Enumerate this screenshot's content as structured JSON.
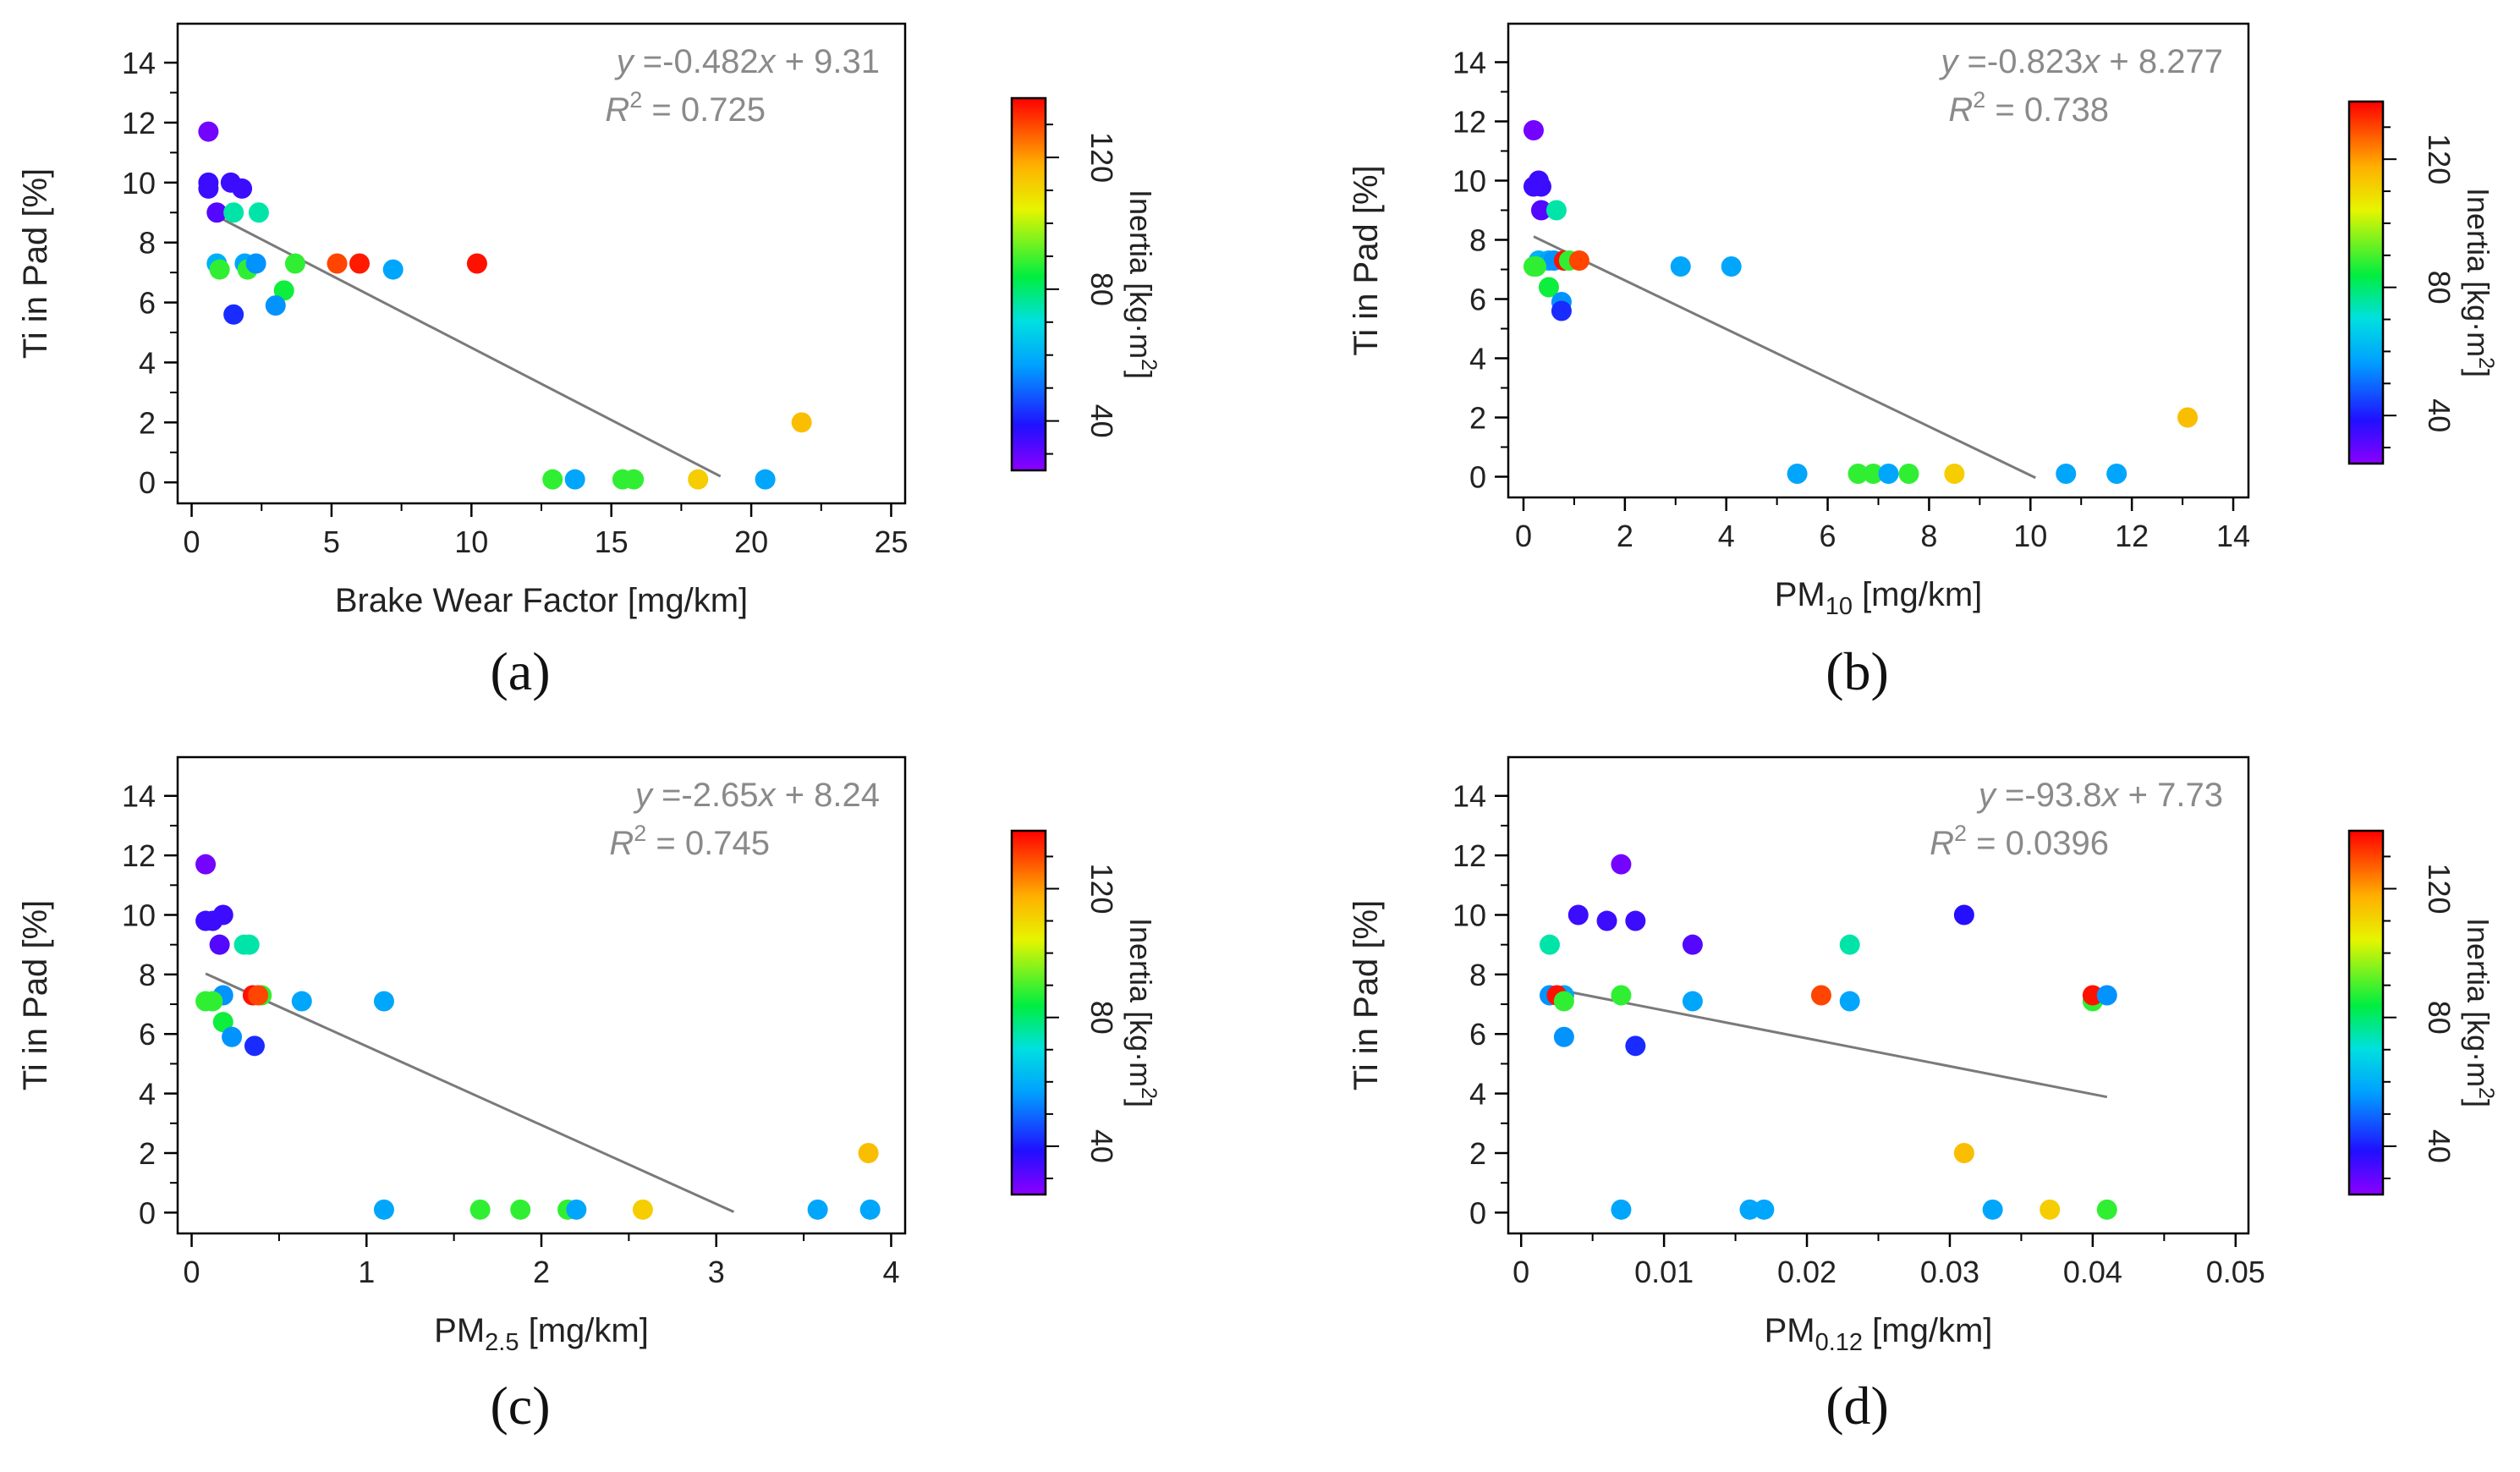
{
  "colorbar": {
    "label_main": "Inertia [kg·m",
    "label_sup": "2",
    "label_close": "]",
    "min": 25,
    "max": 138,
    "ticks": [
      40,
      80,
      120
    ]
  },
  "chart_data": [
    {
      "type": "scatter",
      "panel": "(a)",
      "panel_letter": "a",
      "xlabel_main": "Brake Wear Factor [mg/km]",
      "xlabel_sub": "",
      "xlabel_rest": "",
      "ylabel": "Ti in Pad [%]",
      "xlim": [
        -0.5,
        25.5
      ],
      "ylim": [
        -0.7,
        15.3
      ],
      "xticks": [
        0,
        5,
        10,
        15,
        20,
        25
      ],
      "xtick_labels": [
        "0",
        "5",
        "10",
        "15",
        "20",
        "25"
      ],
      "yticks": [
        0,
        2,
        4,
        6,
        8,
        10,
        12,
        14
      ],
      "fit": {
        "slope": -0.482,
        "intercept": 9.31,
        "x_range": [
          0.6,
          18.9
        ]
      },
      "equation": {
        "prefix": "y",
        "rhs": " =-0.482",
        "var": "x",
        "tail": " + 9.31",
        "r2_prefix": "R",
        "r2_sup": "2",
        "r2_value": " = 0.725"
      },
      "points": [
        {
          "x": 0.6,
          "y": 11.7,
          "inertia": 28
        },
        {
          "x": 0.6,
          "y": 10.0,
          "inertia": 35
        },
        {
          "x": 0.6,
          "y": 9.8,
          "inertia": 35
        },
        {
          "x": 1.4,
          "y": 10.0,
          "inertia": 35
        },
        {
          "x": 1.8,
          "y": 9.8,
          "inertia": 35
        },
        {
          "x": 0.9,
          "y": 9.0,
          "inertia": 32
        },
        {
          "x": 1.5,
          "y": 9.0,
          "inertia": 75
        },
        {
          "x": 2.4,
          "y": 9.0,
          "inertia": 75
        },
        {
          "x": 0.9,
          "y": 7.3,
          "inertia": 60
        },
        {
          "x": 1.0,
          "y": 7.1,
          "inertia": 88
        },
        {
          "x": 1.9,
          "y": 7.3,
          "inertia": 58
        },
        {
          "x": 2.0,
          "y": 7.1,
          "inertia": 88
        },
        {
          "x": 2.3,
          "y": 7.3,
          "inertia": 55
        },
        {
          "x": 3.7,
          "y": 7.3,
          "inertia": 88
        },
        {
          "x": 5.2,
          "y": 7.3,
          "inertia": 130
        },
        {
          "x": 6.0,
          "y": 7.3,
          "inertia": 135
        },
        {
          "x": 7.2,
          "y": 7.1,
          "inertia": 58
        },
        {
          "x": 10.2,
          "y": 7.3,
          "inertia": 136
        },
        {
          "x": 3.3,
          "y": 6.4,
          "inertia": 85
        },
        {
          "x": 3.0,
          "y": 5.9,
          "inertia": 55
        },
        {
          "x": 1.5,
          "y": 5.6,
          "inertia": 42
        },
        {
          "x": 12.9,
          "y": 0.1,
          "inertia": 88
        },
        {
          "x": 13.7,
          "y": 0.1,
          "inertia": 58
        },
        {
          "x": 15.4,
          "y": 0.1,
          "inertia": 88
        },
        {
          "x": 15.8,
          "y": 0.1,
          "inertia": 88
        },
        {
          "x": 18.1,
          "y": 0.1,
          "inertia": 112
        },
        {
          "x": 20.5,
          "y": 0.1,
          "inertia": 58
        },
        {
          "x": 21.8,
          "y": 2.0,
          "inertia": 115
        }
      ]
    },
    {
      "type": "scatter",
      "panel": "(b)",
      "panel_letter": "b",
      "xlabel_main": "PM",
      "xlabel_sub": "10",
      "xlabel_rest": " [mg/km]",
      "ylabel": "Ti in Pad [%]",
      "xlim": [
        -0.3,
        14.3
      ],
      "ylim": [
        -0.7,
        15.3
      ],
      "xticks": [
        0,
        2,
        4,
        6,
        8,
        10,
        12,
        14
      ],
      "xtick_labels": [
        "0",
        "2",
        "4",
        "6",
        "8",
        "10",
        "12",
        "14"
      ],
      "yticks": [
        0,
        2,
        4,
        6,
        8,
        10,
        12,
        14
      ],
      "fit": {
        "slope": -0.823,
        "intercept": 8.277,
        "x_range": [
          0.2,
          10.1
        ]
      },
      "equation": {
        "prefix": "y",
        "rhs": " =-0.823",
        "var": "x",
        "tail": " + 8.277",
        "r2_prefix": "R",
        "r2_sup": "2",
        "r2_value": " = 0.738"
      },
      "points": [
        {
          "x": 0.2,
          "y": 11.7,
          "inertia": 28
        },
        {
          "x": 0.2,
          "y": 9.8,
          "inertia": 35
        },
        {
          "x": 0.3,
          "y": 10.0,
          "inertia": 35
        },
        {
          "x": 0.35,
          "y": 9.8,
          "inertia": 35
        },
        {
          "x": 0.35,
          "y": 9.0,
          "inertia": 32
        },
        {
          "x": 0.65,
          "y": 9.0,
          "inertia": 75
        },
        {
          "x": 0.3,
          "y": 7.3,
          "inertia": 60
        },
        {
          "x": 0.5,
          "y": 7.3,
          "inertia": 58
        },
        {
          "x": 0.6,
          "y": 7.3,
          "inertia": 55
        },
        {
          "x": 0.8,
          "y": 7.3,
          "inertia": 136
        },
        {
          "x": 0.9,
          "y": 7.3,
          "inertia": 88
        },
        {
          "x": 1.1,
          "y": 7.3,
          "inertia": 130
        },
        {
          "x": 0.2,
          "y": 7.1,
          "inertia": 88
        },
        {
          "x": 0.25,
          "y": 7.1,
          "inertia": 88
        },
        {
          "x": 0.5,
          "y": 6.4,
          "inertia": 85
        },
        {
          "x": 0.75,
          "y": 5.9,
          "inertia": 55
        },
        {
          "x": 0.75,
          "y": 5.6,
          "inertia": 42
        },
        {
          "x": 3.1,
          "y": 7.1,
          "inertia": 58
        },
        {
          "x": 4.1,
          "y": 7.1,
          "inertia": 58
        },
        {
          "x": 5.4,
          "y": 0.1,
          "inertia": 58
        },
        {
          "x": 6.6,
          "y": 0.1,
          "inertia": 88
        },
        {
          "x": 6.9,
          "y": 0.1,
          "inertia": 88
        },
        {
          "x": 7.2,
          "y": 0.1,
          "inertia": 58
        },
        {
          "x": 7.6,
          "y": 0.1,
          "inertia": 88
        },
        {
          "x": 8.5,
          "y": 0.1,
          "inertia": 112
        },
        {
          "x": 10.7,
          "y": 0.1,
          "inertia": 58
        },
        {
          "x": 11.7,
          "y": 0.1,
          "inertia": 58
        },
        {
          "x": 13.1,
          "y": 2.0,
          "inertia": 115
        }
      ]
    },
    {
      "type": "scatter",
      "panel": "(c)",
      "panel_letter": "c",
      "xlabel_main": "PM",
      "xlabel_sub": "2.5",
      "xlabel_rest": " [mg/km]",
      "ylabel": "Ti in Pad [%]",
      "xlim": [
        -0.08,
        4.08
      ],
      "ylim": [
        -0.7,
        15.3
      ],
      "xticks": [
        0,
        1,
        2,
        3,
        4
      ],
      "xtick_labels": [
        "0",
        "1",
        "2",
        "3",
        "4"
      ],
      "yticks": [
        0,
        2,
        4,
        6,
        8,
        10,
        12,
        14
      ],
      "fit": {
        "slope": -2.65,
        "intercept": 8.24,
        "x_range": [
          0.08,
          3.1
        ]
      },
      "equation": {
        "prefix": "y",
        "rhs": " =-2.65",
        "var": "x",
        "tail": " + 8.24",
        "r2_prefix": "R",
        "r2_sup": "2",
        "r2_value": " = 0.745"
      },
      "points": [
        {
          "x": 0.08,
          "y": 11.7,
          "inertia": 28
        },
        {
          "x": 0.08,
          "y": 9.8,
          "inertia": 35
        },
        {
          "x": 0.12,
          "y": 9.8,
          "inertia": 35
        },
        {
          "x": 0.18,
          "y": 10.0,
          "inertia": 35
        },
        {
          "x": 0.16,
          "y": 9.0,
          "inertia": 32
        },
        {
          "x": 0.3,
          "y": 9.0,
          "inertia": 75
        },
        {
          "x": 0.33,
          "y": 9.0,
          "inertia": 75
        },
        {
          "x": 0.18,
          "y": 7.3,
          "inertia": 55
        },
        {
          "x": 0.35,
          "y": 7.3,
          "inertia": 136
        },
        {
          "x": 0.4,
          "y": 7.3,
          "inertia": 88
        },
        {
          "x": 0.38,
          "y": 7.3,
          "inertia": 130
        },
        {
          "x": 0.08,
          "y": 7.1,
          "inertia": 88
        },
        {
          "x": 0.12,
          "y": 7.1,
          "inertia": 88
        },
        {
          "x": 0.18,
          "y": 6.4,
          "inertia": 85
        },
        {
          "x": 0.23,
          "y": 5.9,
          "inertia": 55
        },
        {
          "x": 0.36,
          "y": 5.6,
          "inertia": 42
        },
        {
          "x": 0.63,
          "y": 7.1,
          "inertia": 58
        },
        {
          "x": 1.1,
          "y": 7.1,
          "inertia": 58
        },
        {
          "x": 1.1,
          "y": 0.1,
          "inertia": 58
        },
        {
          "x": 1.65,
          "y": 0.1,
          "inertia": 88
        },
        {
          "x": 1.88,
          "y": 0.1,
          "inertia": 88
        },
        {
          "x": 2.15,
          "y": 0.1,
          "inertia": 88
        },
        {
          "x": 2.2,
          "y": 0.1,
          "inertia": 58
        },
        {
          "x": 2.58,
          "y": 0.1,
          "inertia": 112
        },
        {
          "x": 3.58,
          "y": 0.1,
          "inertia": 58
        },
        {
          "x": 3.88,
          "y": 0.1,
          "inertia": 58
        },
        {
          "x": 3.87,
          "y": 2.0,
          "inertia": 115
        }
      ]
    },
    {
      "type": "scatter",
      "panel": "(d)",
      "panel_letter": "d",
      "xlabel_main": "PM",
      "xlabel_sub": "0.12",
      "xlabel_rest": " [mg/km]",
      "ylabel": "Ti in Pad [%]",
      "xlim": [
        -0.0009,
        0.0509
      ],
      "ylim": [
        -0.7,
        15.3
      ],
      "xticks": [
        0,
        0.01,
        0.02,
        0.03,
        0.04,
        0.05
      ],
      "xtick_labels": [
        "0",
        "0.01",
        "0.02",
        "0.03",
        "0.04",
        "0.05"
      ],
      "yticks": [
        0,
        2,
        4,
        6,
        8,
        10,
        12,
        14
      ],
      "fit": {
        "slope": -93.8,
        "intercept": 7.73,
        "x_range": [
          0.002,
          0.041
        ]
      },
      "equation": {
        "prefix": "y",
        "rhs": " =-93.8",
        "var": "x",
        "tail": " + 7.73",
        "r2_prefix": "R",
        "r2_sup": "2",
        "r2_value": " = 0.0396"
      },
      "points": [
        {
          "x": 0.007,
          "y": 11.7,
          "inertia": 28
        },
        {
          "x": 0.004,
          "y": 10.0,
          "inertia": 35
        },
        {
          "x": 0.006,
          "y": 9.8,
          "inertia": 35
        },
        {
          "x": 0.008,
          "y": 9.8,
          "inertia": 35
        },
        {
          "x": 0.031,
          "y": 10.0,
          "inertia": 38
        },
        {
          "x": 0.002,
          "y": 9.0,
          "inertia": 75
        },
        {
          "x": 0.012,
          "y": 9.0,
          "inertia": 32
        },
        {
          "x": 0.023,
          "y": 9.0,
          "inertia": 75
        },
        {
          "x": 0.002,
          "y": 7.3,
          "inertia": 55
        },
        {
          "x": 0.003,
          "y": 7.3,
          "inertia": 58
        },
        {
          "x": 0.0025,
          "y": 7.3,
          "inertia": 136
        },
        {
          "x": 0.003,
          "y": 7.1,
          "inertia": 88
        },
        {
          "x": 0.007,
          "y": 7.3,
          "inertia": 88
        },
        {
          "x": 0.012,
          "y": 7.1,
          "inertia": 58
        },
        {
          "x": 0.021,
          "y": 7.3,
          "inertia": 130
        },
        {
          "x": 0.023,
          "y": 7.1,
          "inertia": 58
        },
        {
          "x": 0.04,
          "y": 7.1,
          "inertia": 88
        },
        {
          "x": 0.04,
          "y": 7.3,
          "inertia": 136
        },
        {
          "x": 0.041,
          "y": 7.3,
          "inertia": 55
        },
        {
          "x": 0.003,
          "y": 5.9,
          "inertia": 55
        },
        {
          "x": 0.008,
          "y": 5.6,
          "inertia": 42
        },
        {
          "x": 0.007,
          "y": 0.1,
          "inertia": 58
        },
        {
          "x": 0.016,
          "y": 0.1,
          "inertia": 58
        },
        {
          "x": 0.017,
          "y": 0.1,
          "inertia": 58
        },
        {
          "x": 0.031,
          "y": 2.0,
          "inertia": 115
        },
        {
          "x": 0.033,
          "y": 0.1,
          "inertia": 58
        },
        {
          "x": 0.037,
          "y": 0.1,
          "inertia": 112
        },
        {
          "x": 0.041,
          "y": 0.1,
          "inertia": 88
        }
      ]
    }
  ]
}
